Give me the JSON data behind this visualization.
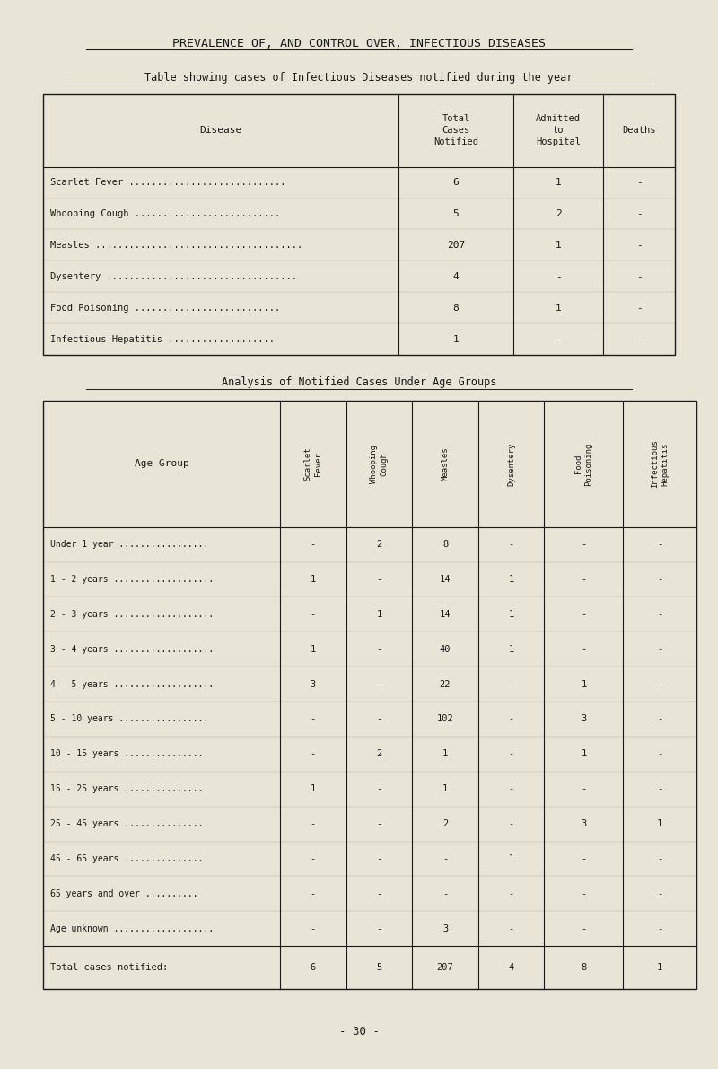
{
  "title": "PREVALENCE OF, AND CONTROL OVER, INFECTIOUS DISEASES",
  "subtitle": "Table showing cases of Infectious Diseases notified during the year",
  "bg_color": "#e8e5d7",
  "text_color": "#1a1a1a",
  "table1": {
    "col_headers": [
      "Disease",
      "Total\nCases\nNotified",
      "Admitted\nto\nHospital",
      "Deaths"
    ],
    "rows": [
      [
        "Scarlet Fever ............................",
        "6",
        "1",
        "-"
      ],
      [
        "Whooping Cough ..........................",
        "5",
        "2",
        "-"
      ],
      [
        "Measles .....................................",
        "207",
        "1",
        "-"
      ],
      [
        "Dysentery ..................................",
        "4",
        "-",
        "-"
      ],
      [
        "Food Poisoning ..........................",
        "8",
        "1",
        "-"
      ],
      [
        "Infectious Hepatitis ...................",
        "1",
        "-",
        "-"
      ]
    ]
  },
  "subtitle2": "Analysis of Notified Cases Under Age Groups",
  "table2": {
    "col_headers": [
      "Age Group",
      "Scarlet\nFever",
      "Whooping\nCough",
      "Measles",
      "Dysentery",
      "Food\nPoisoning",
      "Infectious\nHepatitis"
    ],
    "rows": [
      [
        "Under 1 year .................",
        "-",
        "2",
        "8",
        "-",
        "-",
        "-"
      ],
      [
        "1 - 2 years ...................",
        "1",
        "-",
        "14",
        "1",
        "-",
        "-"
      ],
      [
        "2 - 3 years ...................",
        "-",
        "1",
        "14",
        "1",
        "-",
        "-"
      ],
      [
        "3 - 4 years ...................",
        "1",
        "-",
        "40",
        "1",
        "-",
        "-"
      ],
      [
        "4 - 5 years ...................",
        "3",
        "-",
        "22",
        "-",
        "1",
        "-"
      ],
      [
        "5 - 10 years .................",
        "-",
        "-",
        "102",
        "-",
        "3",
        "-"
      ],
      [
        "10 - 15 years ...............",
        "-",
        "2",
        "1",
        "-",
        "1",
        "-"
      ],
      [
        "15 - 25 years ...............",
        "1",
        "-",
        "1",
        "-",
        "-",
        "-"
      ],
      [
        "25 - 45 years ...............",
        "-",
        "-",
        "2",
        "-",
        "3",
        "1"
      ],
      [
        "45 - 65 years ...............",
        "-",
        "-",
        "-",
        "1",
        "-",
        "-"
      ],
      [
        "65 years and over ..........",
        "-",
        "-",
        "-",
        "-",
        "-",
        "-"
      ],
      [
        "Age unknown ...................",
        "-",
        "-",
        "3",
        "-",
        "-",
        "-"
      ]
    ],
    "total_row": [
      "Total cases notified:",
      "6",
      "5",
      "207",
      "4",
      "8",
      "1"
    ]
  },
  "footer": "- 30 -"
}
